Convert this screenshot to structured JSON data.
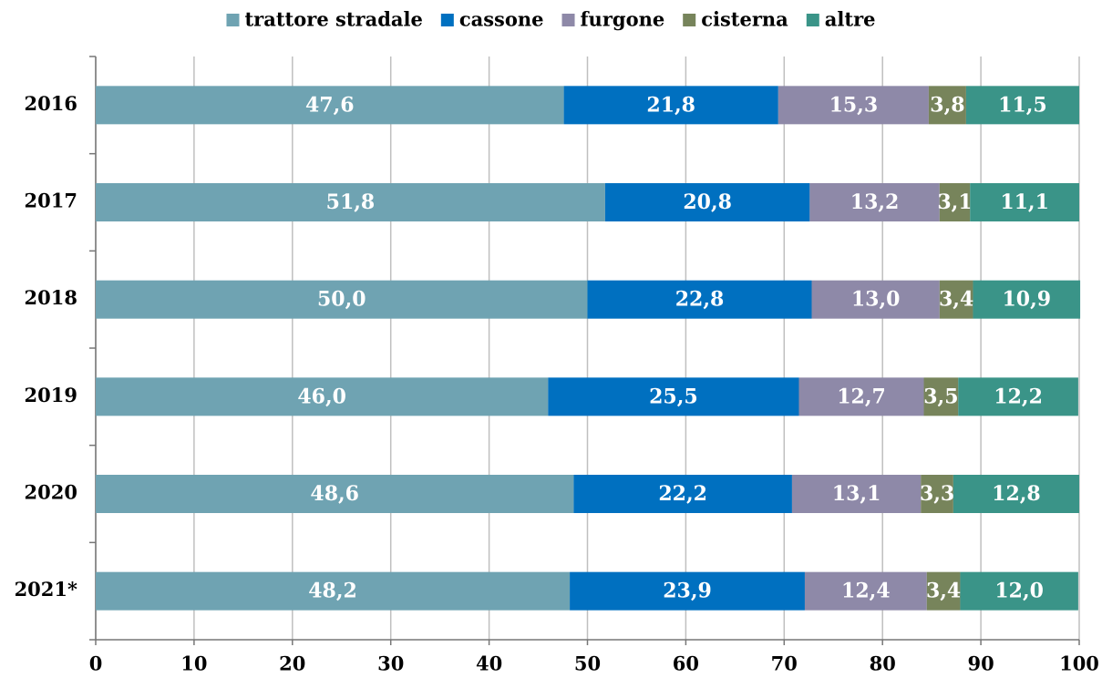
{
  "chart_data": {
    "type": "stacked-barh",
    "categories": [
      "2016",
      "2017",
      "2018",
      "2019",
      "2020",
      "2021*"
    ],
    "series": [
      {
        "name": "trattore stradale",
        "color": "#6fa3b2",
        "values": [
          47.6,
          51.8,
          50.0,
          46.0,
          48.6,
          48.2
        ],
        "value_labels": [
          "47,6",
          "51,8",
          "50,0",
          "46,0",
          "48,6",
          "48,2"
        ]
      },
      {
        "name": "cassone",
        "color": "#0070c0",
        "values": [
          21.8,
          20.8,
          22.8,
          25.5,
          22.2,
          23.9
        ],
        "value_labels": [
          "21,8",
          "20,8",
          "22,8",
          "25,5",
          "22,2",
          "23,9"
        ]
      },
      {
        "name": "furgone",
        "color": "#8e89a8",
        "values": [
          15.3,
          13.2,
          13.0,
          12.7,
          13.1,
          12.4
        ],
        "value_labels": [
          "15,3",
          "13,2",
          "13,0",
          "12,7",
          "13,1",
          "12,4"
        ]
      },
      {
        "name": "cisterna",
        "color": "#77845b",
        "values": [
          3.8,
          3.1,
          3.4,
          3.5,
          3.3,
          3.4
        ],
        "value_labels": [
          "3,8",
          "3,1",
          "3,4",
          "3,5",
          "3,3",
          "3,4"
        ]
      },
      {
        "name": "altre",
        "color": "#3a9488",
        "values": [
          11.5,
          11.1,
          10.9,
          12.2,
          12.8,
          12.0
        ],
        "value_labels": [
          "11,5",
          "11,1",
          "10,9",
          "12,2",
          "12,8",
          "12,0"
        ]
      }
    ],
    "xlim": [
      0,
      100
    ],
    "xticks": [
      0,
      10,
      20,
      30,
      40,
      50,
      60,
      70,
      80,
      90,
      100
    ],
    "grid": true,
    "legend": "top"
  }
}
